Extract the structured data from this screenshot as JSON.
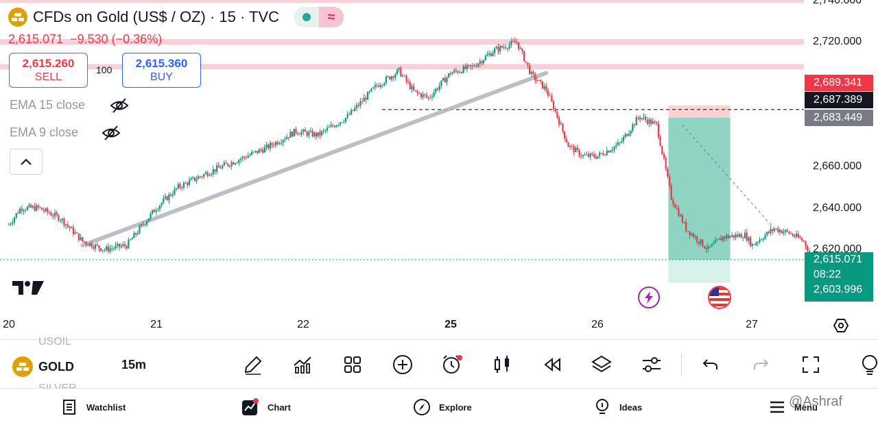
{
  "header": {
    "title": "CFDs on Gold (US$ / OZ) · 15 · TVC",
    "last_price": "2,615.071",
    "change": "−9.530 (−0.36%)"
  },
  "trade": {
    "sell_price": "2,615.260",
    "sell_label": "SELL",
    "quantity": "100",
    "buy_price": "2,615.360",
    "buy_label": "BUY"
  },
  "indicators": [
    {
      "label": "EMA 15 close",
      "visible": false
    },
    {
      "label": "EMA 9 close",
      "visible": false
    }
  ],
  "price_axis": {
    "ticks": [
      "2,740.000",
      "2,720.000",
      "2,660.000",
      "2,640.000",
      "2,620.000"
    ],
    "labels": {
      "stop": "2,689.341",
      "crosshair": "2,687.389",
      "entry": "2,683.449",
      "current": "2,615.071",
      "countdown": "08:22",
      "target": "2,603.996"
    }
  },
  "time_axis": {
    "ticks": [
      {
        "label": "20",
        "bold": false
      },
      {
        "label": "21",
        "bold": false
      },
      {
        "label": "22",
        "bold": false
      },
      {
        "label": "25",
        "bold": true
      },
      {
        "label": "26",
        "bold": false
      },
      {
        "label": "27",
        "bold": false
      }
    ]
  },
  "colors": {
    "up": "#089981",
    "down": "#f23645",
    "profit_zone": "#8fd3c3",
    "loss_zone": "#fcd2d7",
    "resistance": "#f8d0d8",
    "trendline": "#b2b5be",
    "accent": "#2962ff"
  },
  "toolbar": {
    "symbol": "GOLD",
    "symbol_above": "USOIL",
    "symbol_below": "SILVER",
    "interval": "15m",
    "tools": [
      "pen-icon",
      "indicators-icon",
      "layout-icon",
      "add-icon",
      "alarm-icon",
      "candles-icon",
      "replay-icon",
      "layers-icon",
      "settings-sliders-icon",
      "undo-icon",
      "redo-icon",
      "fullscreen-icon",
      "ideas-icon"
    ]
  },
  "nav": {
    "items": [
      {
        "label": "Watchlist",
        "icon": "watchlist-icon"
      },
      {
        "label": "Chart",
        "icon": "chart-icon"
      },
      {
        "label": "Explore",
        "icon": "compass-icon"
      },
      {
        "label": "Ideas",
        "icon": "bulb-icon"
      },
      {
        "label": "Menu",
        "icon": "menu-icon"
      }
    ]
  },
  "watermark": "@Ashraf",
  "chart_data": {
    "type": "candlestick",
    "symbol": "GOLD",
    "interval": "15m",
    "x_ticks": [
      "20",
      "21",
      "22",
      "25",
      "26",
      "27"
    ],
    "y_ticks": [
      2740,
      2720,
      2660,
      2640,
      2620
    ],
    "ylim": [
      2597,
      2742
    ],
    "price_path": [
      [
        0,
        2632
      ],
      [
        0.08,
        2640
      ],
      [
        0.2,
        2640
      ],
      [
        0.35,
        2635
      ],
      [
        0.5,
        2624
      ],
      [
        0.65,
        2620
      ],
      [
        0.8,
        2622
      ],
      [
        1.0,
        2640
      ],
      [
        1.15,
        2650
      ],
      [
        1.35,
        2657
      ],
      [
        1.55,
        2663
      ],
      [
        1.75,
        2669
      ],
      [
        1.95,
        2677
      ],
      [
        2.1,
        2675
      ],
      [
        2.3,
        2684
      ],
      [
        2.5,
        2699
      ],
      [
        2.65,
        2706
      ],
      [
        2.75,
        2696
      ],
      [
        2.85,
        2693
      ],
      [
        3.0,
        2705
      ],
      [
        3.15,
        2708
      ],
      [
        3.3,
        2716
      ],
      [
        3.45,
        2720
      ],
      [
        3.55,
        2704
      ],
      [
        3.65,
        2697
      ],
      [
        3.72,
        2685
      ],
      [
        3.8,
        2670
      ],
      [
        3.9,
        2665
      ],
      [
        4.0,
        2665
      ],
      [
        4.15,
        2671
      ],
      [
        4.28,
        2684
      ],
      [
        4.4,
        2680
      ],
      [
        4.5,
        2645
      ],
      [
        4.6,
        2630
      ],
      [
        4.75,
        2620
      ],
      [
        4.85,
        2626
      ],
      [
        5.0,
        2627
      ],
      [
        5.05,
        2622
      ],
      [
        5.1,
        2625
      ],
      [
        5.2,
        2630
      ],
      [
        5.3,
        2628
      ],
      [
        5.4,
        2624
      ],
      [
        5.45,
        2617
      ]
    ],
    "trendline": [
      [
        0.5,
        2622
      ],
      [
        3.65,
        2705
      ]
    ],
    "resistance_levels": [
      2740,
      2720,
      2708
    ],
    "position": {
      "type": "short",
      "entry": 2683.449,
      "stop": 2689.341,
      "target": 2603.996,
      "start_x": 4.48,
      "end_x": 4.9
    },
    "current_price": 2615.071,
    "crosshair_price": 2687.389
  }
}
